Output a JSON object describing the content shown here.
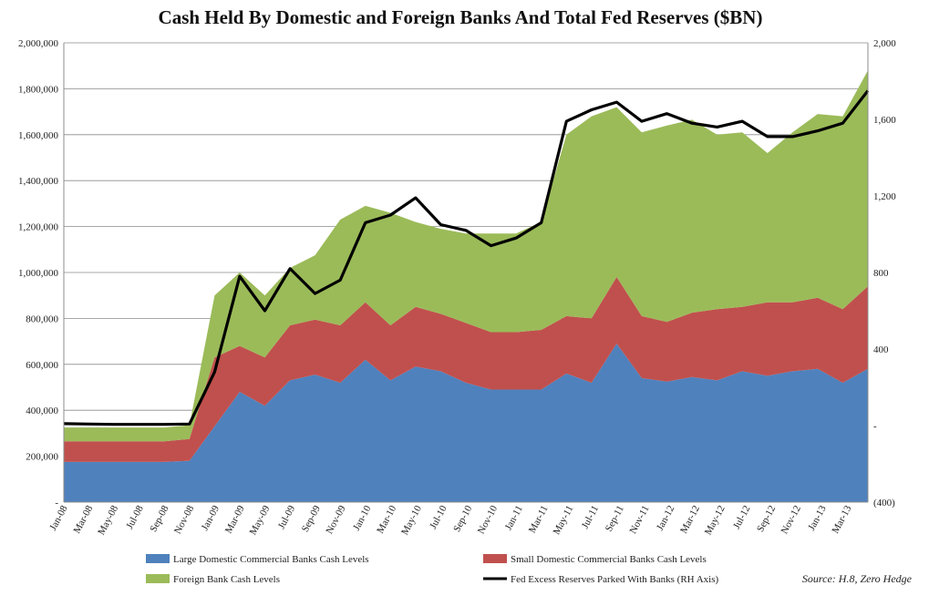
{
  "chart_data": {
    "type": "area",
    "title": "Cash Held By Domestic and Foreign Banks And Total Fed Reserves ($BN)",
    "source": "Source: H.8, Zero Hedge",
    "colors": {
      "large": "#4F81BD",
      "small": "#C0504D",
      "foreign": "#9BBB59",
      "reserves": "#000000"
    },
    "x_tick_labels": [
      "Jan-08",
      "Mar-08",
      "May-08",
      "Jul-08",
      "Sep-08",
      "Nov-08",
      "Jan-09",
      "Mar-09",
      "May-09",
      "Jul-09",
      "Sep-09",
      "Nov-09",
      "Jan-10",
      "Mar-10",
      "May-10",
      "Jul-10",
      "Sep-10",
      "Nov-10",
      "Jan-11",
      "Mar-11",
      "May-11",
      "Jul-11",
      "Sep-11",
      "Nov-11",
      "Jan-12",
      "Mar-12",
      "May-12",
      "Jul-12",
      "Sep-12",
      "Nov-12",
      "Jan-13",
      "Mar-13"
    ],
    "y_left": {
      "ylim": [
        0,
        2000000
      ],
      "ticks": [
        0,
        200000,
        400000,
        600000,
        800000,
        1000000,
        1200000,
        1400000,
        1600000,
        1800000,
        2000000
      ],
      "tick_labels": [
        "-",
        "200,000",
        "400,000",
        "600,000",
        "800,000",
        "1,000,000",
        "1,200,000",
        "1,400,000",
        "1,600,000",
        "1,800,000",
        "2,000,000"
      ]
    },
    "y_right": {
      "ylim": [
        -400,
        2000
      ],
      "ticks": [
        -400,
        0,
        400,
        800,
        1200,
        1600,
        2000
      ],
      "tick_labels": [
        "(400)",
        "-",
        "400",
        "800",
        "1,200",
        "1,600",
        "2,000"
      ]
    },
    "grid": true,
    "legend_position": "bottom",
    "series": [
      {
        "name": "Large Domestic Commercial Banks  Cash Levels",
        "axis": "left",
        "kind": "stacked-area",
        "values": [
          175000,
          175000,
          175000,
          175000,
          175000,
          180000,
          330000,
          480000,
          420000,
          530000,
          555000,
          520000,
          620000,
          530000,
          590000,
          570000,
          520000,
          490000,
          490000,
          490000,
          560000,
          520000,
          690000,
          540000,
          525000,
          545000,
          530000,
          570000,
          550000,
          570000,
          580000,
          520000,
          580000
        ]
      },
      {
        "name": "Small Domestic Commercial Banks Cash Levels",
        "axis": "left",
        "kind": "stacked-area",
        "values": [
          90000,
          90000,
          90000,
          90000,
          90000,
          95000,
          300000,
          200000,
          210000,
          240000,
          240000,
          250000,
          250000,
          240000,
          260000,
          250000,
          260000,
          250000,
          250000,
          260000,
          250000,
          280000,
          290000,
          270000,
          260000,
          280000,
          310000,
          280000,
          320000,
          300000,
          310000,
          320000,
          360000
        ]
      },
      {
        "name": "Foreign Bank Cash Levels",
        "axis": "left",
        "kind": "stacked-area",
        "values": [
          60000,
          60000,
          60000,
          60000,
          60000,
          60000,
          270000,
          320000,
          270000,
          250000,
          280000,
          460000,
          420000,
          490000,
          370000,
          370000,
          390000,
          430000,
          430000,
          470000,
          790000,
          880000,
          740000,
          800000,
          855000,
          840000,
          760000,
          760000,
          650000,
          740000,
          800000,
          840000,
          940000
        ]
      },
      {
        "name": "Fed Excess Reserves Parked With Banks (RH Axis)",
        "axis": "right",
        "kind": "line",
        "values": [
          10,
          8,
          6,
          6,
          6,
          8,
          280,
          780,
          600,
          820,
          690,
          760,
          1060,
          1100,
          1190,
          1050,
          1020,
          940,
          980,
          1060,
          1590,
          1650,
          1690,
          1590,
          1630,
          1580,
          1560,
          1590,
          1510,
          1510,
          1540,
          1580,
          1750
        ]
      }
    ]
  }
}
